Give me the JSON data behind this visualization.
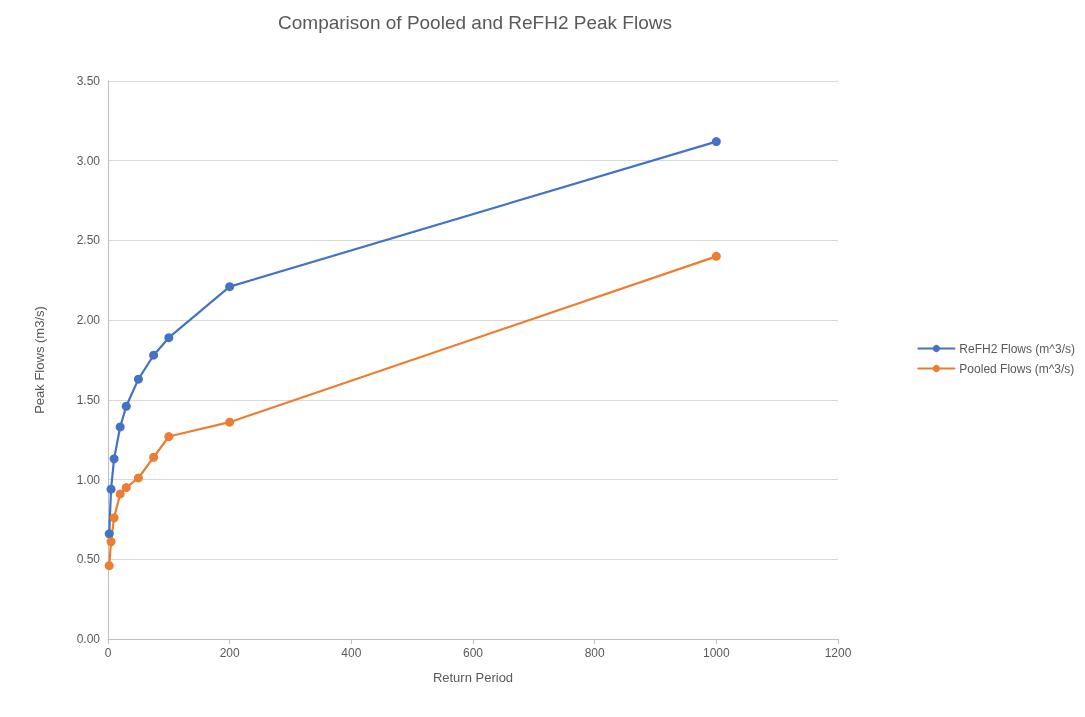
{
  "chart_data": {
    "type": "line",
    "title": "Comparison of Pooled and ReFH2 Peak Flows",
    "xlabel": "Return Period",
    "ylabel": "Peak Flows (m3/s)",
    "x": [
      2,
      5,
      10,
      20,
      30,
      50,
      75,
      100,
      200,
      1000
    ],
    "series": [
      {
        "name": "ReFH2 Flows (m^3/s)",
        "color": "#4472c4",
        "values": [
          0.66,
          0.94,
          1.13,
          1.33,
          1.46,
          1.63,
          1.78,
          1.89,
          2.21,
          3.12
        ]
      },
      {
        "name": "Pooled Flows (m^3/s)",
        "color": "#ed7d31",
        "values": [
          0.46,
          0.61,
          0.76,
          0.91,
          0.95,
          1.01,
          1.14,
          1.27,
          1.36,
          2.4
        ]
      }
    ],
    "xlim": [
      0,
      1200
    ],
    "xticks": [
      0,
      200,
      400,
      600,
      800,
      1000,
      1200
    ],
    "ylim": [
      0,
      3.5
    ],
    "yticks": [
      {
        "value": 0,
        "label": "0.00"
      },
      {
        "value": 0.5,
        "label": "0.50"
      },
      {
        "value": 1,
        "label": "1.00"
      },
      {
        "value": 1.5,
        "label": "1.50"
      },
      {
        "value": 2,
        "label": "2.00"
      },
      {
        "value": 2.5,
        "label": "2.50"
      },
      {
        "value": 3,
        "label": "3.00"
      },
      {
        "value": 3.5,
        "label": "3.50"
      }
    ],
    "grid": "y",
    "legend": "right",
    "marker": "circle",
    "line_style": "solid"
  }
}
